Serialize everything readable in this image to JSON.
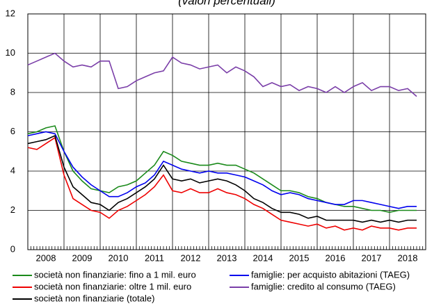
{
  "chart_data": {
    "type": "line",
    "title": "(valori percentuali)",
    "x": [
      2008,
      2008.25,
      2008.5,
      2008.75,
      2009,
      2009.25,
      2009.5,
      2009.75,
      2010,
      2010.25,
      2010.5,
      2010.75,
      2011,
      2011.25,
      2011.5,
      2011.75,
      2012,
      2012.25,
      2012.5,
      2012.75,
      2013,
      2013.25,
      2013.5,
      2013.75,
      2014,
      2014.25,
      2014.5,
      2014.75,
      2015,
      2015.25,
      2015.5,
      2015.75,
      2016,
      2016.25,
      2016.5,
      2016.75,
      2017,
      2017.25,
      2017.5,
      2017.75,
      2018,
      2018.25,
      2018.5,
      2018.75
    ],
    "xlim": [
      2008,
      2019
    ],
    "xticks": [
      2008,
      2009,
      2010,
      2011,
      2012,
      2013,
      2014,
      2015,
      2016,
      2017,
      2018
    ],
    "ylim": [
      0,
      12
    ],
    "yticks": [
      0,
      2,
      4,
      6,
      8,
      10,
      12
    ],
    "grid": true,
    "series": [
      {
        "name": "società non finanziarie: fino a 1 mil. euro",
        "color": "#1a8a1a",
        "values": [
          5.9,
          6.0,
          6.2,
          6.3,
          5.0,
          4.0,
          3.5,
          3.1,
          3.0,
          2.9,
          3.2,
          3.3,
          3.5,
          3.9,
          4.3,
          5.0,
          4.8,
          4.5,
          4.4,
          4.3,
          4.3,
          4.4,
          4.3,
          4.3,
          4.1,
          3.9,
          3.6,
          3.3,
          3.0,
          3.0,
          2.9,
          2.7,
          2.6,
          2.4,
          2.3,
          2.2,
          2.2,
          2.1,
          2.0,
          2.0,
          1.9,
          2.0,
          2.0,
          2.0
        ]
      },
      {
        "name": "famiglie: per acquisto abitazioni (TAEG)",
        "color": "#0000ee",
        "values": [
          5.8,
          5.9,
          6.0,
          5.9,
          5.0,
          4.2,
          3.7,
          3.3,
          3.0,
          2.7,
          2.7,
          2.9,
          3.2,
          3.4,
          3.8,
          4.5,
          4.3,
          4.1,
          4.0,
          3.9,
          4.0,
          3.9,
          3.9,
          3.8,
          3.7,
          3.5,
          3.3,
          3.0,
          2.8,
          2.9,
          2.8,
          2.6,
          2.5,
          2.4,
          2.3,
          2.3,
          2.5,
          2.5,
          2.4,
          2.3,
          2.2,
          2.1,
          2.2,
          2.2
        ]
      },
      {
        "name": "società non finanziarie: oltre 1 mil. euro",
        "color": "#ee0000",
        "values": [
          5.2,
          5.1,
          5.4,
          5.7,
          3.8,
          2.6,
          2.3,
          2.0,
          1.9,
          1.6,
          2.0,
          2.2,
          2.5,
          2.8,
          3.2,
          3.8,
          3.0,
          2.9,
          3.1,
          2.9,
          2.9,
          3.1,
          2.9,
          2.8,
          2.6,
          2.3,
          2.1,
          1.8,
          1.5,
          1.4,
          1.3,
          1.2,
          1.3,
          1.1,
          1.2,
          1.0,
          1.1,
          1.0,
          1.2,
          1.1,
          1.1,
          1.0,
          1.1,
          1.1
        ]
      },
      {
        "name": "famiglie: credito al consumo (TAEG)",
        "color": "#7a3ea8",
        "values": [
          9.4,
          9.6,
          9.8,
          10.0,
          9.6,
          9.3,
          9.4,
          9.3,
          9.6,
          9.6,
          8.2,
          8.3,
          8.6,
          8.8,
          9.0,
          9.1,
          9.8,
          9.5,
          9.4,
          9.2,
          9.3,
          9.4,
          9.0,
          9.3,
          9.1,
          8.8,
          8.3,
          8.5,
          8.3,
          8.4,
          8.1,
          8.3,
          8.2,
          8.0,
          8.3,
          8.0,
          8.3,
          8.5,
          8.1,
          8.3,
          8.3,
          8.1,
          8.2,
          7.8
        ]
      },
      {
        "name": "società non finanziarie (totale)",
        "color": "#000000",
        "values": [
          5.4,
          5.5,
          5.6,
          5.8,
          4.2,
          3.2,
          2.8,
          2.4,
          2.3,
          2.0,
          2.4,
          2.6,
          2.9,
          3.2,
          3.6,
          4.3,
          3.6,
          3.5,
          3.6,
          3.4,
          3.5,
          3.6,
          3.5,
          3.3,
          3.0,
          2.6,
          2.4,
          2.1,
          1.9,
          1.9,
          1.8,
          1.6,
          1.7,
          1.5,
          1.5,
          1.5,
          1.5,
          1.4,
          1.5,
          1.4,
          1.5,
          1.4,
          1.5,
          1.5
        ]
      }
    ]
  }
}
